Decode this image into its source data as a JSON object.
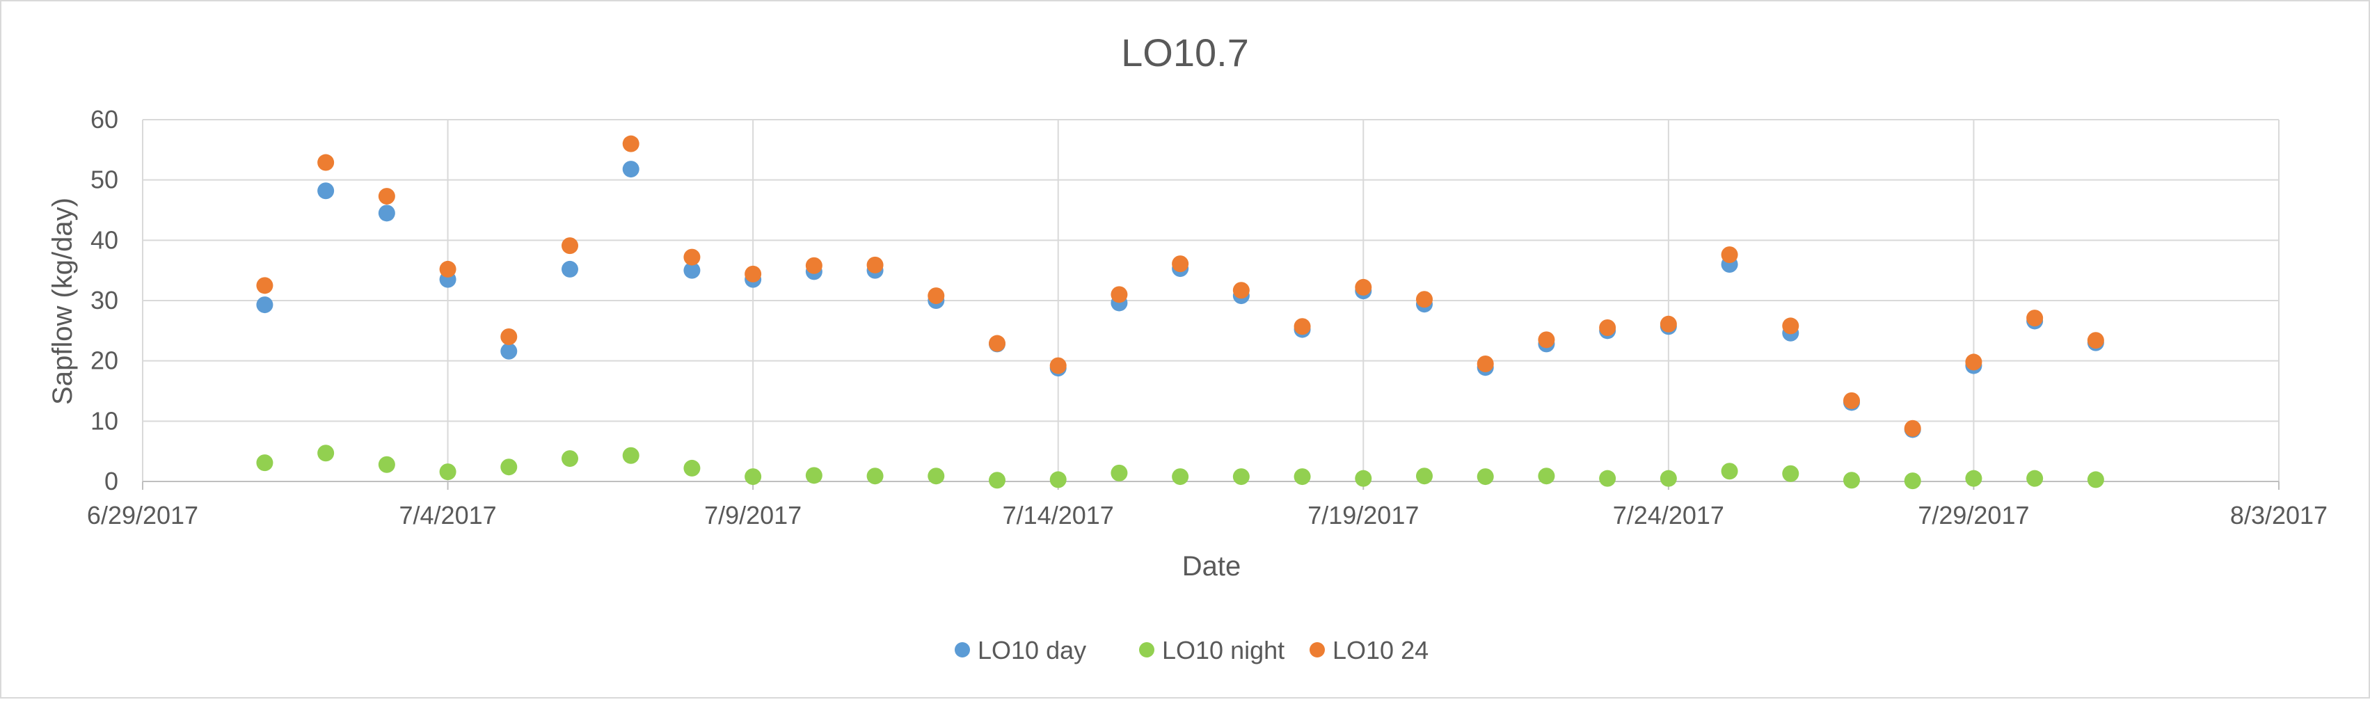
{
  "chart_data": {
    "type": "scatter",
    "title": "LO10.7",
    "xlabel": "Date",
    "ylabel": "Sapflow (kg/day)",
    "xlim": [
      "2017-06-29",
      "2017-08-03"
    ],
    "ylim": [
      0,
      60
    ],
    "x_ticks": [
      "6/29/2017",
      "7/4/2017",
      "7/9/2017",
      "7/14/2017",
      "7/19/2017",
      "7/24/2017",
      "7/29/2017",
      "8/3/2017"
    ],
    "x_tick_dates": [
      "2017-06-29",
      "2017-07-04",
      "2017-07-09",
      "2017-07-14",
      "2017-07-19",
      "2017-07-24",
      "2017-07-29",
      "2017-08-03"
    ],
    "y_ticks": [
      0,
      10,
      20,
      30,
      40,
      50,
      60
    ],
    "grid": true,
    "legend_position": "bottom",
    "x": [
      "2017-07-01",
      "2017-07-02",
      "2017-07-03",
      "2017-07-04",
      "2017-07-05",
      "2017-07-06",
      "2017-07-07",
      "2017-07-08",
      "2017-07-09",
      "2017-07-10",
      "2017-07-11",
      "2017-07-12",
      "2017-07-13",
      "2017-07-14",
      "2017-07-15",
      "2017-07-16",
      "2017-07-17",
      "2017-07-18",
      "2017-07-19",
      "2017-07-20",
      "2017-07-21",
      "2017-07-22",
      "2017-07-23",
      "2017-07-24",
      "2017-07-25",
      "2017-07-26",
      "2017-07-27",
      "2017-07-28",
      "2017-07-29",
      "2017-07-30",
      "2017-07-31"
    ],
    "series": [
      {
        "name": "LO10 day",
        "color": "#5B9BD5",
        "values": [
          29.3,
          48.2,
          44.5,
          33.5,
          21.6,
          35.2,
          51.8,
          35.0,
          33.5,
          34.8,
          35.0,
          30.0,
          22.8,
          18.8,
          29.6,
          35.3,
          30.8,
          25.2,
          31.6,
          29.4,
          18.9,
          22.8,
          25.0,
          25.7,
          36.0,
          24.6,
          13.1,
          8.6,
          19.2,
          26.6,
          23.0
        ]
      },
      {
        "name": "LO10 night",
        "color": "#92D050",
        "values": [
          3.1,
          4.7,
          2.8,
          1.6,
          2.4,
          3.8,
          4.3,
          2.2,
          0.8,
          1.0,
          0.9,
          0.9,
          0.2,
          0.3,
          1.4,
          0.8,
          0.8,
          0.8,
          0.5,
          0.9,
          0.8,
          0.9,
          0.5,
          0.5,
          1.7,
          1.3,
          0.2,
          0.1,
          0.5,
          0.5,
          0.3
        ]
      },
      {
        "name": "LO10 24",
        "color": "#ED7D31",
        "values": [
          32.5,
          52.9,
          47.3,
          35.2,
          24.0,
          39.1,
          56.0,
          37.2,
          34.4,
          35.8,
          35.9,
          30.8,
          22.9,
          19.2,
          31.0,
          36.1,
          31.7,
          25.7,
          32.2,
          30.2,
          19.5,
          23.5,
          25.5,
          26.1,
          37.6,
          25.8,
          13.4,
          8.8,
          19.8,
          27.1,
          23.4
        ]
      }
    ]
  }
}
